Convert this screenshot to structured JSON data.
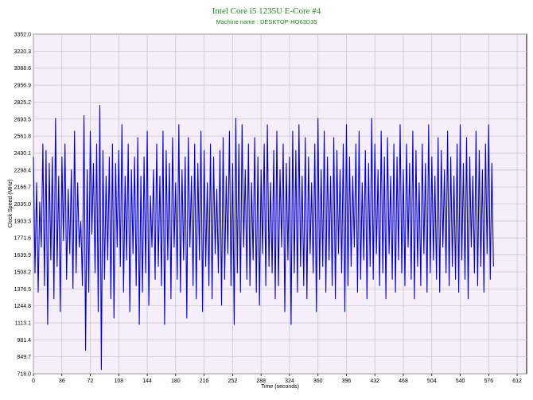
{
  "chart_data": {
    "type": "line",
    "title": "Intel Core i5 1235U E-Core #4",
    "subtitle": "Machine name : DESKTOP-HO63D35",
    "xlabel": "Time (seconds)",
    "ylabel": "Clock Speed (MHz)",
    "xlim": [
      0,
      624
    ],
    "ylim": [
      718.0,
      3352.0
    ],
    "x_ticks": [
      "0",
      "36",
      "72",
      "108",
      "144",
      "180",
      "216",
      "252",
      "288",
      "324",
      "360",
      "396",
      "432",
      "468",
      "504",
      "540",
      "576",
      "612"
    ],
    "y_ticks": [
      "718.0",
      "849.7",
      "981.4",
      "1113.1",
      "1244.8",
      "1376.5",
      "1508.2",
      "1639.9",
      "1771.6",
      "1903.3",
      "2035.0",
      "2166.7",
      "2298.4",
      "2430.1",
      "2561.8",
      "2693.5",
      "2825.2",
      "2956.9",
      "3088.6",
      "3220.3",
      "3352.0"
    ],
    "grid": true,
    "background_color": "#f7eefb",
    "grid_color": "#c8c8c8",
    "line_color": "#0000cc",
    "title_color": "#1a8a1a",
    "series": [
      {
        "name": "",
        "sample_interval_s": 2,
        "values": [
          2400,
          1500,
          2200,
          1350,
          2050,
          1700,
          2500,
          1400,
          2450,
          1100,
          2350,
          1600,
          2400,
          1300,
          2700,
          1550,
          2250,
          1200,
          2400,
          1750,
          2500,
          1450,
          2150,
          1650,
          2300,
          1380,
          2600,
          1500,
          2200,
          1700,
          1900,
          1400,
          2720,
          900,
          2300,
          1350,
          2600,
          1800,
          2350,
          1500,
          2500,
          1200,
          2800,
          750,
          2450,
          1450,
          2250,
          1600,
          2400,
          1300,
          2500,
          1150,
          2350,
          1700,
          2450,
          1550,
          2650,
          1350,
          2250,
          1600,
          2500,
          1200,
          2300,
          1650,
          2400,
          1400,
          2550,
          1100,
          2250,
          1350,
          2400,
          1500,
          2600,
          1250,
          2100,
          1700,
          2300,
          1450,
          2500,
          1550,
          2250,
          1400,
          2600,
          1100,
          2450,
          1600,
          2350,
          1300,
          2550,
          1700,
          2200,
          1450,
          2650,
          1350,
          2300,
          1600,
          2400,
          1150,
          2550,
          1700,
          2250,
          1400,
          2500,
          1300,
          2350,
          1600,
          2600,
          1200,
          2450,
          1550,
          2200,
          1400,
          2500,
          1300,
          2400,
          1650,
          2150,
          1500,
          2450,
          1250,
          2550,
          1450,
          2250,
          1650,
          2600,
          1400,
          2350,
          1100,
          2700,
          1500,
          2500,
          1350,
          2650,
          1700,
          2300,
          1450,
          2500,
          1400,
          2200,
          1600,
          2550,
          1350,
          2400,
          1250,
          2300,
          1650,
          2500,
          1400,
          2650,
          1550,
          2200,
          1500,
          2450,
          1300,
          2600,
          1400,
          2300,
          1700,
          2500,
          1200,
          2350,
          1600,
          2400,
          1100,
          2600,
          1500,
          2450,
          1350,
          2650,
          1550,
          2250,
          1400,
          2550,
          1300,
          2400,
          1650,
          2200,
          1500,
          2500,
          1200,
          2700,
          1450,
          2300,
          1550,
          2600,
          1350,
          2400,
          1600,
          2250,
          1400,
          2550,
          1300,
          2450,
          1650,
          2300,
          1500,
          2500,
          1200,
          2650,
          1400,
          2400,
          1550,
          2250,
          1700,
          2500,
          1350,
          2600,
          1450,
          2200,
          1600,
          2450,
          1300,
          2350,
          1550,
          2700,
          1450,
          2500,
          1650,
          2300,
          1400,
          2600,
          1500,
          2400,
          1300,
          2550,
          1650,
          2250,
          1450,
          2500,
          1350,
          2400,
          1600,
          2650,
          1500,
          2300,
          1400,
          2500,
          1700,
          2350,
          1450,
          2600,
          1300,
          2450,
          1550,
          2200,
          1400,
          2500,
          1650,
          2350,
          1350,
          2650,
          1500,
          2400,
          1600,
          2250,
          1450,
          2550,
          1350,
          2450,
          1700,
          2300,
          1500,
          2600,
          1400,
          2400,
          1550,
          2250,
          1450,
          2500,
          1350,
          2650,
          1600,
          2350,
          1450,
          2550,
          1300,
          2400,
          1700,
          2250,
          1500,
          2600,
          1400,
          2450,
          1550,
          2300,
          1350,
          2500,
          1650,
          2650,
          1450,
          2350,
          1550
        ]
      }
    ]
  }
}
